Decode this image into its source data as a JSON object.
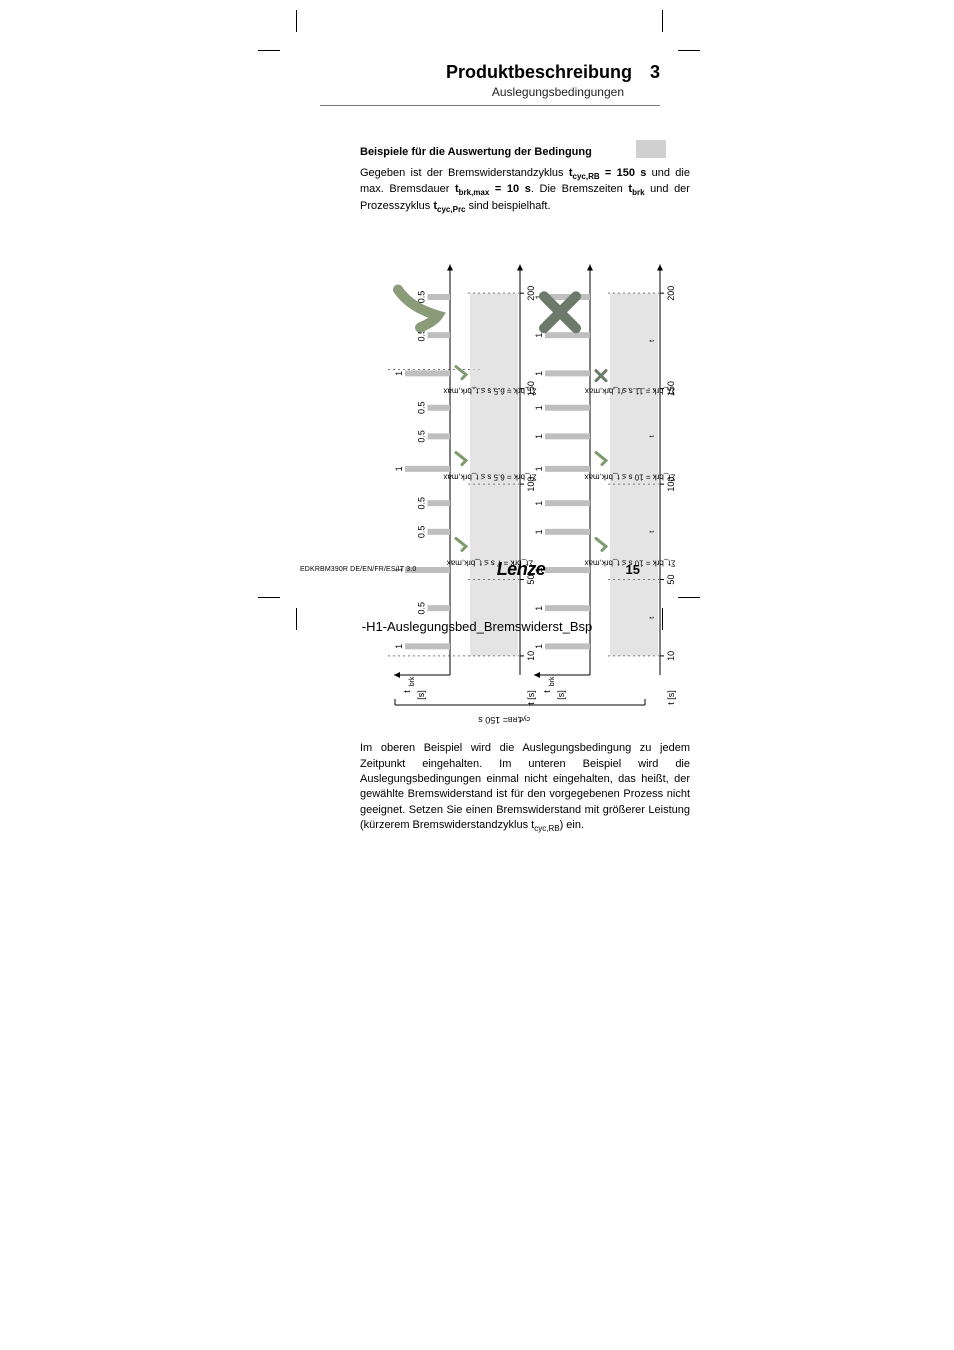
{
  "header": {
    "title": "Produktbeschreibung",
    "chapter_number": "3",
    "subtitle": "Auslegungsbedingungen"
  },
  "section": {
    "heading": "Beispiele für die Auswertung der Bedingung",
    "intro_part1": "Gegeben ist der Bremswiderstandzyklus ",
    "intro_sym1": "t",
    "intro_sub1": "cyc,RB",
    "intro_eq1": " = 150 s",
    "intro_part2": " und die max. Bremsdauer ",
    "intro_sym2": "t",
    "intro_sub2": "brk,max",
    "intro_eq2": " = 10 s",
    "intro_part3": ". Die Bremszeiten ",
    "intro_sym3": "t",
    "intro_sub3": "brk",
    "intro_part4": " und der Prozesszyklus ",
    "intro_sym4": "t",
    "intro_sub4": "cyc,Prc",
    "intro_part5": " sind beispielhaft.",
    "explanation": "Im oberen Beispiel wird die Auslegungsbedingung zu jedem Zeitpunkt eingehalten. Im unteren Beispiel wird die Auslegungsbedingungen einmal nicht eingehalten, das heißt, der gewählte Bremswiderstand ist für den vorgegebenen Prozess nicht geeignet. Setzen Sie einen Bremswiderstand mit größerer Leistung (kürzerem Bremswiderstandzyklus t",
    "explanation_sub": "cyc,RB",
    "explanation_tail": ") ein."
  },
  "chart": {
    "type": "timing-diagram",
    "orientation": "rotated-90-ccw",
    "cycle_label": "t_cyc,RB = 150 s",
    "time_axis_ticks": [
      "10",
      "50",
      "100",
      "150",
      "200"
    ],
    "time_axis_label": "t [s]",
    "brake_axis_label": "t_brk[s]",
    "prc_label": "t_cyc,Prc",
    "example_top": {
      "pulse_labels": [
        "1",
        "0.5",
        "1",
        "0.5",
        "0.5",
        "1",
        "0.5",
        "0.5",
        "1",
        "0.5",
        "0.5"
      ],
      "annotations": [
        "Σt_brk = 7 s ≤ t_brk,max",
        "Σt_brk = 6.5 s ≤ t_brk,max",
        "Σt_brk = 6.5 s ≤ t_brk,max"
      ],
      "status": "pass",
      "checkmark_color": "#8a9b7a"
    },
    "example_bottom": {
      "pulse_labels": [
        "1",
        "1",
        "1",
        "1",
        "1",
        "1",
        "1",
        "1",
        "1",
        "1",
        "1"
      ],
      "annotations": [
        "Σt_brk = 10 s ≤ t_brk,max",
        "Σt_brk = 10 s ≤ t_brk,max",
        "Σt_brk = 11 s ≰ t_brk,max"
      ],
      "status": "fail",
      "cross_color": "#6b7a6b"
    },
    "colors": {
      "bar_fill": "#bfbfbf",
      "bar_fill_light": "#d9d9d9",
      "axis": "#000000",
      "grid_dash": "#7a7a7a",
      "background": "#ffffff",
      "check_green": "#7d9b6f",
      "cross_grey": "#6b7a6b"
    },
    "fontsize_ticks": 9,
    "fontsize_labels": 9,
    "fontsize_annot": 8
  },
  "footer": {
    "doc_id": "EDKRBM390R  DE/EN/FR/ES/IT  3.0",
    "brand": "Lenze",
    "page": "15"
  },
  "bottom_annotation": "-H1-Auslegungsbed_Bremswiderst_Bsp"
}
